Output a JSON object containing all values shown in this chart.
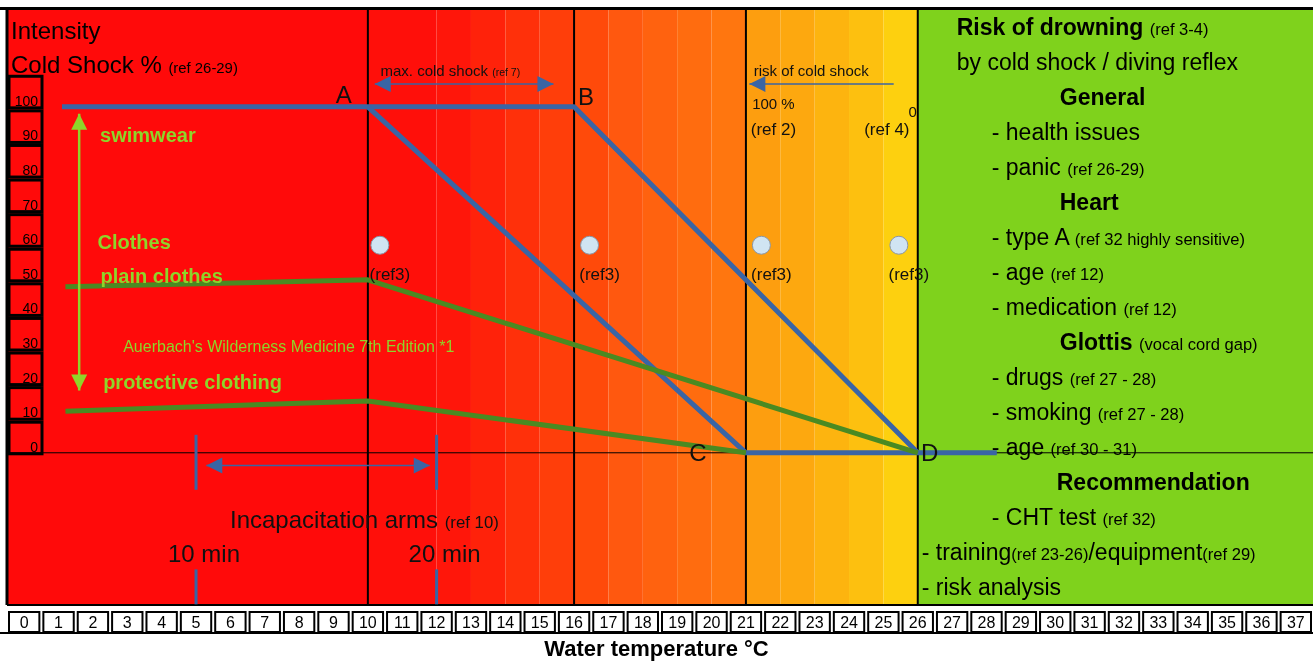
{
  "chart_data": {
    "type": "line",
    "ylabel": "Intensity\nCold Shock % (ref 26-29)",
    "xlabel": "Water temperature °C",
    "xlim": [
      -0.5,
      37.5
    ],
    "xticks": [
      0,
      1,
      2,
      3,
      4,
      5,
      6,
      7,
      8,
      9,
      10,
      11,
      12,
      13,
      14,
      15,
      16,
      17,
      18,
      19,
      20,
      21,
      22,
      23,
      24,
      25,
      26,
      27,
      28,
      29,
      30,
      31,
      32,
      33,
      34,
      35,
      36,
      37
    ],
    "ylim": [
      -44,
      128
    ],
    "yticks": [
      0,
      10,
      20,
      30,
      40,
      50,
      60,
      70,
      80,
      90,
      100
    ],
    "series": [
      {
        "color": "#3a65a5",
        "x": [
          1.1,
          16,
          26
        ],
        "values": [
          100,
          100,
          0
        ]
      },
      {
        "color": "#3a65a5",
        "x": [
          10,
          21,
          28.3
        ],
        "values": [
          100,
          0,
          0
        ]
      },
      {
        "color": "#4a8a22",
        "x": [
          1.2,
          10,
          26
        ],
        "values": [
          48,
          50,
          0
        ]
      },
      {
        "color": "#4a8a22",
        "x": [
          1.2,
          10,
          21
        ],
        "values": [
          12,
          15,
          0
        ]
      },
      {
        "type": "scatter",
        "color": "#d0e4f2",
        "x": [
          10.35,
          16.45,
          21.45,
          25.45
        ],
        "values": [
          60,
          60,
          60,
          60
        ]
      }
    ],
    "bands": [
      {
        "axis": "x",
        "from": -0.5,
        "to": 10,
        "color": "#ff0a0a"
      },
      {
        "axis": "x",
        "from": 10,
        "to": 12,
        "color": "#ff0f0a"
      },
      {
        "axis": "x",
        "from": 12,
        "to": 13,
        "color": "#ff160a"
      },
      {
        "axis": "x",
        "from": 13,
        "to": 14,
        "color": "#ff220a"
      },
      {
        "axis": "x",
        "from": 14,
        "to": 15,
        "color": "#ff300a"
      },
      {
        "axis": "x",
        "from": 15,
        "to": 16,
        "color": "#ff3e0a"
      },
      {
        "axis": "x",
        "from": 16,
        "to": 17,
        "color": "#ff4a0a"
      },
      {
        "axis": "x",
        "from": 17,
        "to": 18,
        "color": "#ff580f"
      },
      {
        "axis": "x",
        "from": 18,
        "to": 19,
        "color": "#ff620f"
      },
      {
        "axis": "x",
        "from": 19,
        "to": 20,
        "color": "#ff6c0f"
      },
      {
        "axis": "x",
        "from": 20,
        "to": 21,
        "color": "#ff760f"
      },
      {
        "axis": "x",
        "from": 21,
        "to": 22,
        "color": "#fd9e0f"
      },
      {
        "axis": "x",
        "from": 22,
        "to": 23,
        "color": "#fda80f"
      },
      {
        "axis": "x",
        "from": 23,
        "to": 24,
        "color": "#fdb40f"
      },
      {
        "axis": "x",
        "from": 24,
        "to": 25,
        "color": "#fdc00f"
      },
      {
        "axis": "x",
        "from": 25,
        "to": 26,
        "color": "#fdd00f"
      },
      {
        "axis": "x",
        "from": 26,
        "to": 37.5,
        "color": "#7fd21c"
      }
    ],
    "ref_lines": [
      {
        "axis": "x",
        "value": 10,
        "color": "#000000"
      },
      {
        "axis": "x",
        "value": 16,
        "color": "#000000"
      },
      {
        "axis": "x",
        "value": 21,
        "color": "#000000"
      },
      {
        "axis": "x",
        "value": 26,
        "color": "#000000"
      },
      {
        "axis": "y",
        "value": 0,
        "color": "#000000"
      },
      {
        "axis": "x",
        "value": 5,
        "label": "10 min",
        "color": "#3a65a5"
      },
      {
        "axis": "x",
        "value": 12,
        "label": "20 min",
        "color": "#3a65a5"
      }
    ],
    "annotations": [
      {
        "text": "A",
        "x": 10,
        "y": 100
      },
      {
        "text": "B",
        "x": 16,
        "y": 100
      },
      {
        "text": "C",
        "x": 21,
        "y": 0
      },
      {
        "text": "D",
        "x": 26,
        "y": 0
      },
      {
        "text": "(ref3)",
        "x": 10.35,
        "y": 60
      },
      {
        "text": "(ref3)",
        "x": 16.45,
        "y": 60
      },
      {
        "text": "(ref3)",
        "x": 21.45,
        "y": 60
      },
      {
        "text": "(ref3)",
        "x": 25.45,
        "y": 60
      },
      "swimwear",
      "Clothes",
      "plain clothes",
      "Auerbach's Wilderness Medicine 7th Edition *1",
      "protective clothing",
      "max. cold shock (ref 7)",
      "risk of cold shock",
      "100 %",
      "0",
      "(ref 2)",
      "(ref 4)",
      "Incapacitation arms (ref 10)",
      "Risk of drowning (ref 3-4)",
      "by cold shock / diving reflex",
      "General",
      "- health issues",
      "- panic (ref 26-29)",
      "Heart",
      "- type A (ref 32 highly sensitive)",
      "- age (ref 12)",
      "- medication (ref 12)",
      "Glottis (vocal cord gap)",
      "- drugs (ref 27 - 28)",
      "- smoking (ref 27 - 28)",
      "- age (ref 30 - 31)",
      "Recommendation",
      "- CHT test (ref 32)",
      "- training(ref 23-26)/equipment(ref 29)",
      "- risk analysis"
    ]
  }
}
